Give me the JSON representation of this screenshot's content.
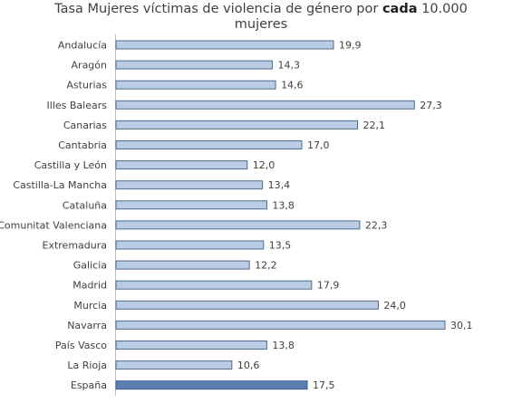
{
  "chart_data": {
    "type": "bar",
    "orientation": "horizontal",
    "title_parts": [
      "Tasa Mujeres víctimas de violencia de género por ",
      "cada",
      " 10.000",
      "mujeres"
    ],
    "categories": [
      "Andalucía",
      "Aragón",
      "Asturias",
      "Illes Balears",
      "Canarias",
      "Cantabria",
      "Castilla y León",
      "Castilla-La Mancha",
      "Cataluña",
      "Comunitat Valenciana",
      "Extremadura",
      "Galicia",
      "Madrid",
      "Murcia",
      "Navarra",
      "País Vasco",
      "La Rioja",
      "España"
    ],
    "values": [
      19.9,
      14.3,
      14.6,
      27.3,
      22.1,
      17.0,
      12.0,
      13.4,
      13.8,
      22.3,
      13.5,
      12.2,
      17.9,
      24.0,
      30.1,
      13.8,
      10.6,
      17.5
    ],
    "value_labels": [
      "19,9",
      "14,3",
      "14,6",
      "27,3",
      "22,1",
      "17,0",
      "12,0",
      "13,4",
      "13,8",
      "22,3",
      "13,5",
      "12,2",
      "17,9",
      "24,0",
      "30,1",
      "13,8",
      "10,6",
      "17,5"
    ],
    "xlim": [
      0,
      30.1
    ],
    "grid": false,
    "legend": "none",
    "colors": {
      "bar_fill": "#b9cce4",
      "bar_stroke": "#4f6b8f",
      "highlight_fill": "#5b7fb0",
      "highlight_stroke": "#3e5f8e"
    },
    "highlight_category": "España"
  }
}
